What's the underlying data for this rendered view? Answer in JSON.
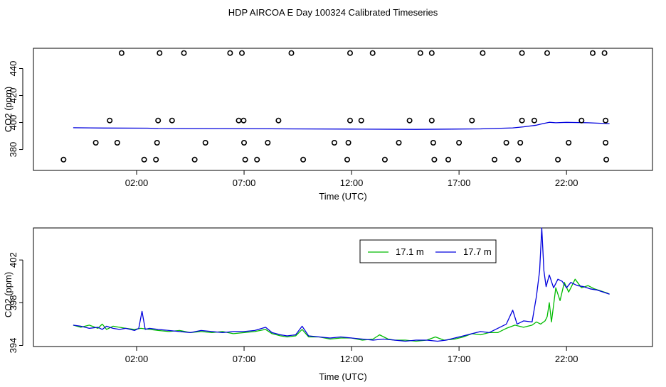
{
  "page": {
    "title": "HDP AIRCOA E  Day 100324  Calibrated Timeseries"
  },
  "colors": {
    "series_17_1": "#00bb00",
    "series_17_7": "#0000dd",
    "points": "#000000"
  },
  "chart_data": [
    {
      "type": "scatter",
      "title": "",
      "xlabel": "Time (UTC)",
      "ylabel": "CO2 (ppm)",
      "x_ticks": [
        "02:00",
        "07:00",
        "12:00",
        "17:00",
        "22:00"
      ],
      "x_tick_hours": [
        2,
        7,
        12,
        17,
        22
      ],
      "xlim_hours": [
        -2.8,
        26.0
      ],
      "y_ticks": [
        "380",
        "400",
        "420",
        "440"
      ],
      "y_tick_values": [
        380,
        400,
        420,
        440
      ],
      "ylim": [
        364.5,
        455
      ],
      "calibration_points": [
        {
          "t": 1.3,
          "v": 451.5
        },
        {
          "t": 3.07,
          "v": 451.5
        },
        {
          "t": 4.2,
          "v": 451.5
        },
        {
          "t": 6.35,
          "v": 451.5
        },
        {
          "t": 6.9,
          "v": 451.5
        },
        {
          "t": 9.2,
          "v": 451.5
        },
        {
          "t": 11.93,
          "v": 451.5
        },
        {
          "t": 12.98,
          "v": 451.5
        },
        {
          "t": 15.2,
          "v": 451.5
        },
        {
          "t": 15.73,
          "v": 451.5
        },
        {
          "t": 18.1,
          "v": 451.5
        },
        {
          "t": 19.93,
          "v": 451.5
        },
        {
          "t": 21.1,
          "v": 451.5
        },
        {
          "t": 23.22,
          "v": 451.5
        },
        {
          "t": 23.77,
          "v": 451.5
        },
        {
          "t": 0.75,
          "v": 401.5
        },
        {
          "t": 3.0,
          "v": 401.5
        },
        {
          "t": 3.65,
          "v": 401.5
        },
        {
          "t": 6.75,
          "v": 401.5
        },
        {
          "t": 6.98,
          "v": 401.5
        },
        {
          "t": 8.6,
          "v": 401.5
        },
        {
          "t": 11.93,
          "v": 401.5
        },
        {
          "t": 12.45,
          "v": 401.5
        },
        {
          "t": 14.7,
          "v": 401.5
        },
        {
          "t": 15.73,
          "v": 401.5
        },
        {
          "t": 17.6,
          "v": 401.5
        },
        {
          "t": 19.93,
          "v": 401.5
        },
        {
          "t": 20.5,
          "v": 401.5
        },
        {
          "t": 22.7,
          "v": 401.5
        },
        {
          "t": 23.82,
          "v": 401.5
        },
        {
          "t": 0.1,
          "v": 385
        },
        {
          "t": 1.1,
          "v": 385
        },
        {
          "t": 2.95,
          "v": 385
        },
        {
          "t": 5.2,
          "v": 385
        },
        {
          "t": 7.0,
          "v": 385
        },
        {
          "t": 8.1,
          "v": 385
        },
        {
          "t": 11.2,
          "v": 385
        },
        {
          "t": 11.85,
          "v": 385
        },
        {
          "t": 14.2,
          "v": 385
        },
        {
          "t": 15.8,
          "v": 385
        },
        {
          "t": 17.0,
          "v": 385
        },
        {
          "t": 19.2,
          "v": 385
        },
        {
          "t": 19.85,
          "v": 385
        },
        {
          "t": 22.1,
          "v": 385
        },
        {
          "t": 23.82,
          "v": 385
        },
        {
          "t": -1.4,
          "v": 372.5
        },
        {
          "t": 2.35,
          "v": 372.5
        },
        {
          "t": 2.9,
          "v": 372.5
        },
        {
          "t": 4.7,
          "v": 372.5
        },
        {
          "t": 7.05,
          "v": 372.5
        },
        {
          "t": 7.6,
          "v": 372.5
        },
        {
          "t": 9.75,
          "v": 372.5
        },
        {
          "t": 11.8,
          "v": 372.5
        },
        {
          "t": 13.55,
          "v": 372.5
        },
        {
          "t": 15.85,
          "v": 372.5
        },
        {
          "t": 16.5,
          "v": 372.5
        },
        {
          "t": 18.65,
          "v": 372.5
        },
        {
          "t": 19.75,
          "v": 372.5
        },
        {
          "t": 21.6,
          "v": 372.5
        },
        {
          "t": 23.85,
          "v": 372.5
        }
      ],
      "series": [
        {
          "x_hours": [
            -0.95,
            0.5,
            2.5,
            3.0,
            6.0,
            9.0,
            12.0,
            15.0,
            18.0,
            19.5,
            20.0,
            20.6,
            20.9,
            21.2,
            21.5,
            22.0,
            23.0,
            24.0
          ],
          "values": [
            396.1,
            395.9,
            395.8,
            395.6,
            395.5,
            395.3,
            395.1,
            394.9,
            395.3,
            396.0,
            396.8,
            398.0,
            399.2,
            400.2,
            399.8,
            400.1,
            399.8,
            399.2
          ]
        }
      ]
    },
    {
      "type": "line",
      "title": "",
      "xlabel": "Time (UTC)",
      "ylabel": "CO2 (ppm)",
      "x_ticks": [
        "02:00",
        "07:00",
        "12:00",
        "17:00",
        "22:00"
      ],
      "x_tick_hours": [
        2,
        7,
        12,
        17,
        22
      ],
      "xlim_hours": [
        -2.8,
        26.0
      ],
      "y_ticks": [
        "394",
        "398",
        "402"
      ],
      "y_tick_values": [
        394,
        398,
        402
      ],
      "ylim": [
        393.9,
        405.0
      ],
      "legend_position": "top-center",
      "series": [
        {
          "name": "17.1 m",
          "x_hours": [
            -0.95,
            -0.6,
            -0.2,
            0.2,
            0.4,
            0.6,
            0.9,
            1.2,
            1.5,
            1.9,
            2.2,
            2.6,
            3.0,
            3.5,
            4.0,
            4.5,
            5.0,
            5.5,
            6.0,
            6.5,
            7.0,
            7.5,
            8.0,
            8.3,
            8.7,
            9.0,
            9.4,
            9.7,
            10.0,
            10.5,
            11.0,
            11.5,
            12.0,
            12.5,
            13.0,
            13.3,
            13.7,
            14.0,
            14.5,
            15.0,
            15.5,
            15.9,
            16.3,
            16.8,
            17.2,
            17.6,
            18.0,
            18.4,
            18.8,
            19.2,
            19.6,
            20.0,
            20.4,
            20.6,
            20.8,
            21.0,
            21.1,
            21.2,
            21.3,
            21.5,
            21.7,
            21.9,
            22.1,
            22.4,
            22.7,
            23.0,
            23.3,
            23.6,
            23.9,
            24.0
          ],
          "values": [
            395.9,
            395.7,
            395.9,
            395.6,
            396.0,
            395.5,
            395.8,
            395.7,
            395.6,
            395.5,
            395.6,
            395.5,
            395.4,
            395.3,
            395.4,
            395.2,
            395.3,
            395.2,
            395.3,
            395.1,
            395.2,
            395.3,
            395.5,
            395.1,
            394.9,
            394.8,
            394.9,
            395.5,
            394.8,
            394.8,
            394.6,
            394.7,
            394.7,
            394.5,
            394.6,
            395.0,
            394.6,
            394.5,
            394.5,
            394.4,
            394.5,
            394.8,
            394.5,
            394.6,
            394.8,
            395.1,
            395.0,
            395.2,
            395.2,
            395.6,
            395.9,
            395.7,
            395.9,
            396.2,
            396.0,
            396.3,
            396.7,
            398.0,
            396.2,
            399.4,
            398.2,
            399.9,
            399.0,
            400.2,
            399.4,
            399.6,
            399.3,
            399.1,
            398.9,
            398.8
          ]
        },
        {
          "name": "17.7 m",
          "x_hours": [
            -0.95,
            -0.6,
            -0.2,
            0.2,
            0.4,
            0.6,
            0.9,
            1.2,
            1.5,
            1.9,
            2.1,
            2.25,
            2.4,
            2.6,
            3.0,
            3.5,
            4.0,
            4.5,
            5.0,
            5.5,
            6.0,
            6.5,
            7.0,
            7.5,
            8.0,
            8.3,
            8.7,
            9.0,
            9.4,
            9.7,
            10.0,
            10.5,
            11.0,
            11.5,
            12.0,
            12.5,
            13.0,
            13.5,
            14.0,
            14.5,
            15.0,
            15.5,
            16.0,
            16.4,
            16.8,
            17.2,
            17.6,
            18.0,
            18.4,
            18.8,
            19.2,
            19.5,
            19.7,
            20.0,
            20.4,
            20.6,
            20.75,
            20.85,
            20.95,
            21.05,
            21.2,
            21.4,
            21.6,
            21.8,
            22.0,
            22.2,
            22.5,
            22.8,
            23.1,
            23.4,
            23.7,
            24.0
          ],
          "values": [
            395.9,
            395.8,
            395.6,
            395.7,
            395.5,
            395.8,
            395.6,
            395.5,
            395.6,
            395.4,
            395.6,
            397.2,
            395.5,
            395.6,
            395.5,
            395.4,
            395.3,
            395.2,
            395.4,
            395.3,
            395.2,
            395.3,
            395.3,
            395.4,
            395.7,
            395.2,
            395.0,
            394.9,
            395.0,
            395.8,
            394.9,
            394.8,
            394.7,
            394.8,
            394.7,
            394.6,
            394.5,
            394.6,
            394.5,
            394.4,
            394.5,
            394.5,
            394.4,
            394.5,
            394.7,
            394.9,
            395.1,
            395.3,
            395.2,
            395.6,
            396.0,
            397.3,
            396.0,
            396.3,
            396.2,
            398.6,
            401.0,
            405.0,
            401.0,
            399.5,
            400.6,
            399.4,
            400.2,
            400.0,
            399.4,
            399.9,
            399.6,
            399.5,
            399.3,
            399.2,
            399.0,
            398.8
          ]
        }
      ]
    }
  ]
}
